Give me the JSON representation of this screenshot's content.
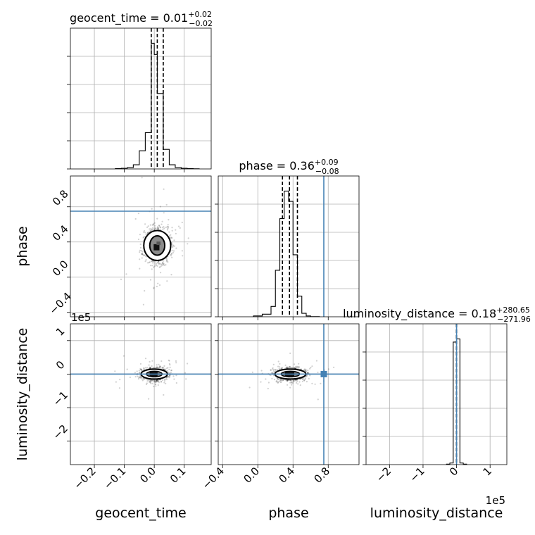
{
  "chart_data": {
    "type": "corner",
    "parameters": [
      {
        "key": "geocent_time",
        "label": "geocent_time",
        "title_prefix": "geocent_time = 0.01",
        "median_text": "0.01",
        "upper_text": "+0.02",
        "lower_text": "−0.02",
        "range": [
          -0.28,
          0.19
        ],
        "ticks": [
          -0.2,
          -0.1,
          0.0,
          0.1
        ],
        "tick_labels": [
          "−0.2",
          "−0.1",
          "0.0",
          "0.1"
        ],
        "quantiles": [
          -0.01,
          0.01,
          0.03
        ],
        "hist_edges": [
          -0.13,
          -0.11,
          -0.09,
          -0.07,
          -0.05,
          -0.03,
          -0.01,
          0.0,
          0.01,
          0.02,
          0.03,
          0.05,
          0.07,
          0.09,
          0.11,
          0.13,
          0.15
        ],
        "hist_counts": [
          0.2,
          0.5,
          1.0,
          3.0,
          13.0,
          26.0,
          90.0,
          82.0,
          54.0,
          54.0,
          14.0,
          3.0,
          1.0,
          0.5,
          0.2,
          0.1
        ]
      },
      {
        "key": "phase",
        "label": "phase",
        "title_prefix": "phase = 0.36",
        "median_text": "0.36",
        "upper_text": "+0.09",
        "lower_text": "−0.08",
        "range": [
          -0.45,
          1.15
        ],
        "ticks": [
          -0.4,
          0.0,
          0.4,
          0.8
        ],
        "tick_labels": [
          "−0.4",
          "0.0",
          "0.4",
          "0.8"
        ],
        "quantiles": [
          0.28,
          0.36,
          0.45
        ],
        "truth": 0.75,
        "hist_edges": [
          -0.05,
          0.05,
          0.15,
          0.2,
          0.25,
          0.3,
          0.35,
          0.4,
          0.45,
          0.5,
          0.55,
          0.6,
          0.7
        ],
        "hist_counts": [
          0.5,
          1.5,
          6.0,
          27.0,
          57.0,
          73.0,
          67.0,
          36.0,
          12.0,
          2.0,
          0.5,
          0.1
        ]
      },
      {
        "key": "luminosity_distance",
        "label": "luminosity_distance",
        "title_prefix": "luminosity_distance = 0.18",
        "median_text": "0.18",
        "upper_text": "+280.65",
        "lower_text": "−271.96",
        "range": [
          -270000,
          150000
        ],
        "ticks": [
          -200000,
          -100000,
          0,
          100000
        ],
        "tick_labels": [
          "−2",
          "−1",
          "0",
          "1"
        ],
        "offset_text": "1e5",
        "quantiles": [
          -271.78,
          0.18,
          280.83
        ],
        "truth": 0,
        "hist_edges": [
          -30000,
          -20000,
          -10000,
          0,
          10000,
          20000,
          30000
        ],
        "hist_counts": [
          0.3,
          1.0,
          77.0,
          79.0,
          1.0,
          0.3
        ]
      }
    ],
    "scatter": {
      "phase_vs_geocent_time": {
        "x_center": 0.01,
        "x_spread": 0.02,
        "y_center": 0.36,
        "y_spread": 0.085,
        "contour_x_radii": [
          0.012,
          0.025,
          0.045
        ],
        "contour_y_radii": [
          0.05,
          0.11,
          0.17
        ]
      },
      "luminosity_distance_vs_geocent_time": {
        "x_center": 0.0,
        "x_spread": 0.02,
        "y_center": 0,
        "y_spread": 9000
      },
      "luminosity_distance_vs_phase": {
        "x_center": 0.37,
        "x_spread": 0.08,
        "y_center": 0,
        "y_spread": 9000
      }
    },
    "grid": true
  }
}
